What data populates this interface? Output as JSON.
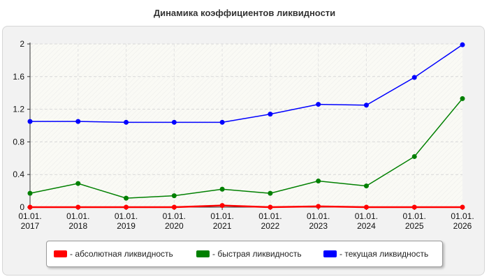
{
  "title": "Динамика коэффициентов ликвидности",
  "chart_data": {
    "type": "line",
    "title": "Динамика коэффициентов ликвидности",
    "xlabel": "",
    "ylabel": "",
    "categories": [
      [
        "01.01.",
        "2017"
      ],
      [
        "01.01.",
        "2018"
      ],
      [
        "01.01.",
        "2019"
      ],
      [
        "01.01.",
        "2020"
      ],
      [
        "01.01.",
        "2021"
      ],
      [
        "01.01.",
        "2022"
      ],
      [
        "01.01.",
        "2023"
      ],
      [
        "01.01.",
        "2024"
      ],
      [
        "01.01.",
        "2025"
      ],
      [
        "01.01.",
        "2026"
      ]
    ],
    "ylim": [
      0,
      2
    ],
    "yticks": [
      "0",
      "0.4",
      "0.8",
      "1.2",
      "1.6",
      "2"
    ],
    "grid": true,
    "legend_position": "bottom",
    "series": [
      {
        "name": "- абсолютная ликвидность",
        "color": "#ff0000",
        "values": [
          0.0,
          0.0,
          0.0,
          0.0,
          0.02,
          0.0,
          0.01,
          0.0,
          0.0,
          0.0
        ]
      },
      {
        "name": "- быстрая ликвидность",
        "color": "#008000",
        "values": [
          0.17,
          0.29,
          0.11,
          0.14,
          0.22,
          0.17,
          0.32,
          0.26,
          0.62,
          1.33
        ]
      },
      {
        "name": "- текущая ликвидность",
        "color": "#0000ff",
        "values": [
          1.05,
          1.05,
          1.04,
          1.04,
          1.04,
          1.14,
          1.26,
          1.25,
          1.59,
          1.99
        ]
      }
    ]
  }
}
